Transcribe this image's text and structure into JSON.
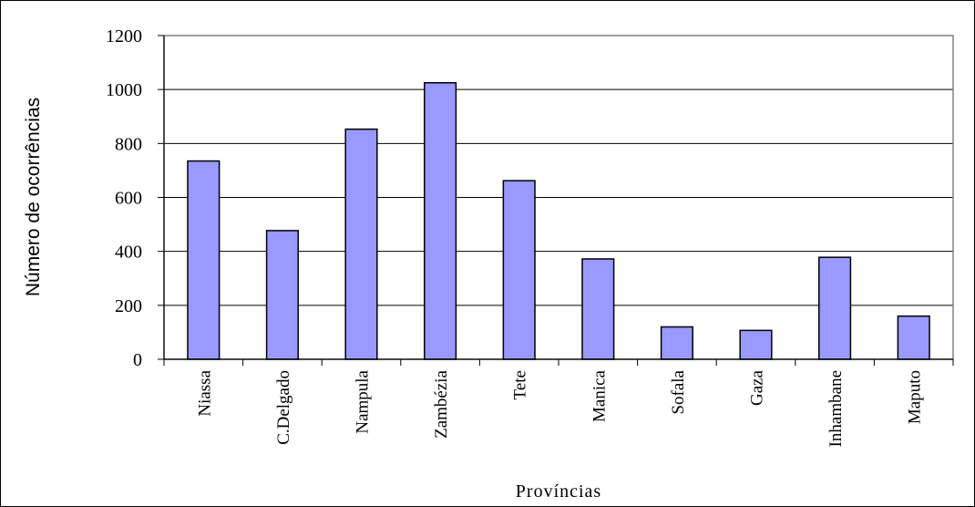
{
  "chart_data": {
    "type": "bar",
    "categories": [
      "Niassa",
      "C.Delgado",
      "Nampula",
      "Zambézia",
      "Tete",
      "Manica",
      "Sofala",
      "Gaza",
      "Inhambane",
      "Maputo"
    ],
    "values": [
      735,
      477,
      853,
      1025,
      662,
      372,
      120,
      107,
      378,
      160
    ],
    "xlabel": "Províncias",
    "ylabel": "Número de ocorrências",
    "ylim": [
      0,
      1200
    ],
    "yticks": [
      0,
      200,
      400,
      600,
      800,
      1000,
      1200
    ],
    "grid": true,
    "legend": "none",
    "colors": {
      "bar_fill": "#9999ff",
      "bar_stroke": "#000000",
      "grid": "#000000",
      "plot_border": "#808080"
    }
  }
}
